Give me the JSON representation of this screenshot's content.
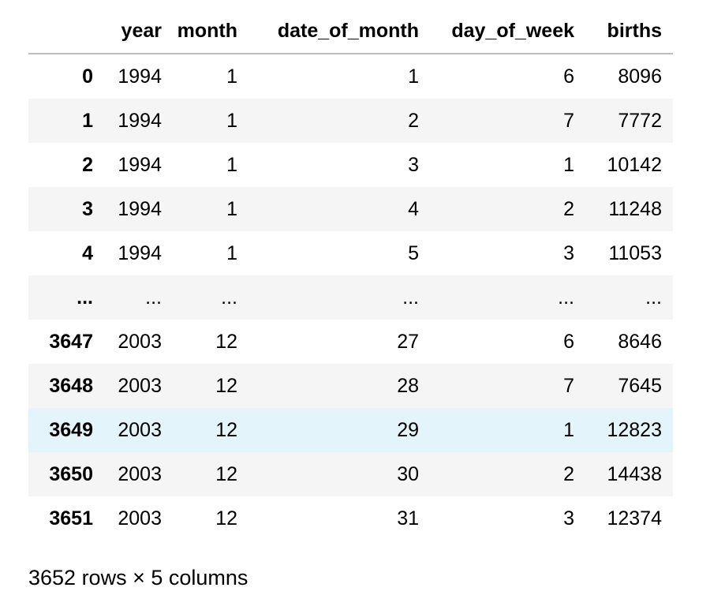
{
  "table": {
    "columns": [
      "",
      "year",
      "month",
      "date_of_month",
      "day_of_week",
      "births"
    ],
    "rows": [
      {
        "index": "0",
        "cells": [
          "1994",
          "1",
          "1",
          "6",
          "8096"
        ]
      },
      {
        "index": "1",
        "cells": [
          "1994",
          "1",
          "2",
          "7",
          "7772"
        ]
      },
      {
        "index": "2",
        "cells": [
          "1994",
          "1",
          "3",
          "1",
          "10142"
        ]
      },
      {
        "index": "3",
        "cells": [
          "1994",
          "1",
          "4",
          "2",
          "11248"
        ]
      },
      {
        "index": "4",
        "cells": [
          "1994",
          "1",
          "5",
          "3",
          "11053"
        ]
      },
      {
        "index": "...",
        "cells": [
          "...",
          "...",
          "...",
          "...",
          "..."
        ]
      },
      {
        "index": "3647",
        "cells": [
          "2003",
          "12",
          "27",
          "6",
          "8646"
        ]
      },
      {
        "index": "3648",
        "cells": [
          "2003",
          "12",
          "28",
          "7",
          "7645"
        ]
      },
      {
        "index": "3649",
        "cells": [
          "2003",
          "12",
          "29",
          "1",
          "12823"
        ]
      },
      {
        "index": "3650",
        "cells": [
          "2003",
          "12",
          "30",
          "2",
          "14438"
        ]
      },
      {
        "index": "3651",
        "cells": [
          "2003",
          "12",
          "31",
          "3",
          "12374"
        ]
      }
    ]
  },
  "footer": {
    "shape_text": "3652 rows × 5 columns"
  },
  "colors": {
    "stripe": "#f5f5f5",
    "hover": "#e3f4fb",
    "header_rule": "#bdbdbd"
  }
}
